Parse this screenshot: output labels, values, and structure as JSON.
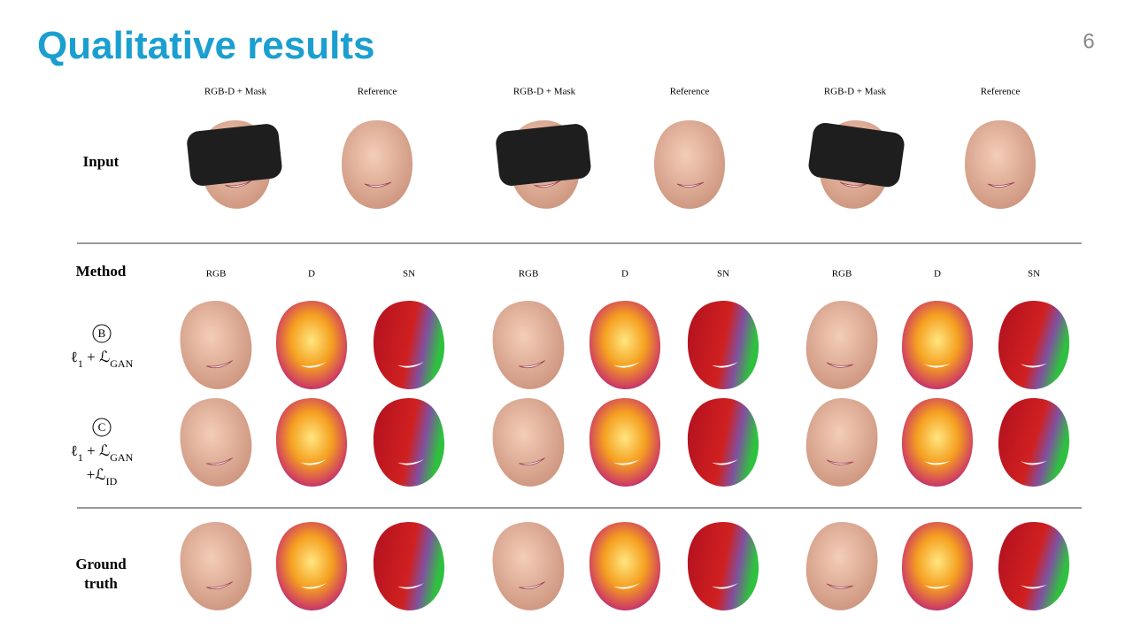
{
  "header": {
    "title": "Qualitative results",
    "page_number": "6"
  },
  "input_row": {
    "label": "Input",
    "columns": [
      "RGB-D + Mask",
      "Reference",
      "RGB-D + Mask",
      "Reference",
      "RGB-D + Mask",
      "Reference"
    ]
  },
  "method_header": {
    "label": "Method",
    "columns": [
      "RGB",
      "D",
      "SN",
      "RGB",
      "D",
      "SN",
      "RGB",
      "D",
      "SN"
    ]
  },
  "methods": [
    {
      "marker": "B",
      "formula": [
        [
          {
            "text": "ℓ",
            "sub": "1"
          },
          {
            "text": " + "
          },
          {
            "text": "ℒ",
            "sub": "GAN"
          }
        ]
      ]
    },
    {
      "marker": "C",
      "formula": [
        [
          {
            "text": "ℓ",
            "sub": "1"
          },
          {
            "text": " + "
          },
          {
            "text": "ℒ",
            "sub": "GAN"
          }
        ],
        [
          {
            "text": "+"
          },
          {
            "text": "ℒ",
            "sub": "ID"
          }
        ]
      ]
    }
  ],
  "ground_truth": {
    "label_lines": [
      "Ground",
      "truth"
    ]
  }
}
